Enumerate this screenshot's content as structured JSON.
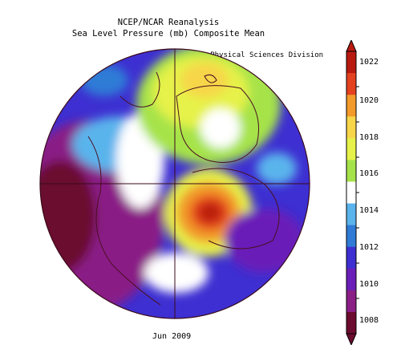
{
  "title_line1": "NCEP/NCAR Reanalysis",
  "title_line2": "Sea Level Pressure (mb) Composite Mean",
  "credit": "NOAA/ESRL Physical Sciences Division",
  "date_label": "Jun 2009",
  "colorbar": {
    "ticks": [
      "1022",
      "1020",
      "1018",
      "1016",
      "1014",
      "1012",
      "1010",
      "1008"
    ],
    "colors": [
      "#6b0b2e",
      "#8a1f86",
      "#6a1fb8",
      "#3d2fd1",
      "#2f7bd6",
      "#5ab4ec",
      "#ffffff",
      "#a6e34a",
      "#e6f24a",
      "#f7d64a",
      "#f29a2a",
      "#e4411f",
      "#b81a10"
    ]
  },
  "field_colors": {
    "low_dark": "#6b0b2e",
    "low": "#8a1f86",
    "purple": "#6a1fb8",
    "violet": "#3d2fd1",
    "blue": "#2f7bd6",
    "light_blue": "#5ab4ec",
    "neutral": "#ffffff",
    "green": "#a6e34a",
    "yellow": "#e6f24a",
    "orange": "#f29a2a",
    "red": "#e4411f",
    "dark_red": "#b81a10"
  }
}
